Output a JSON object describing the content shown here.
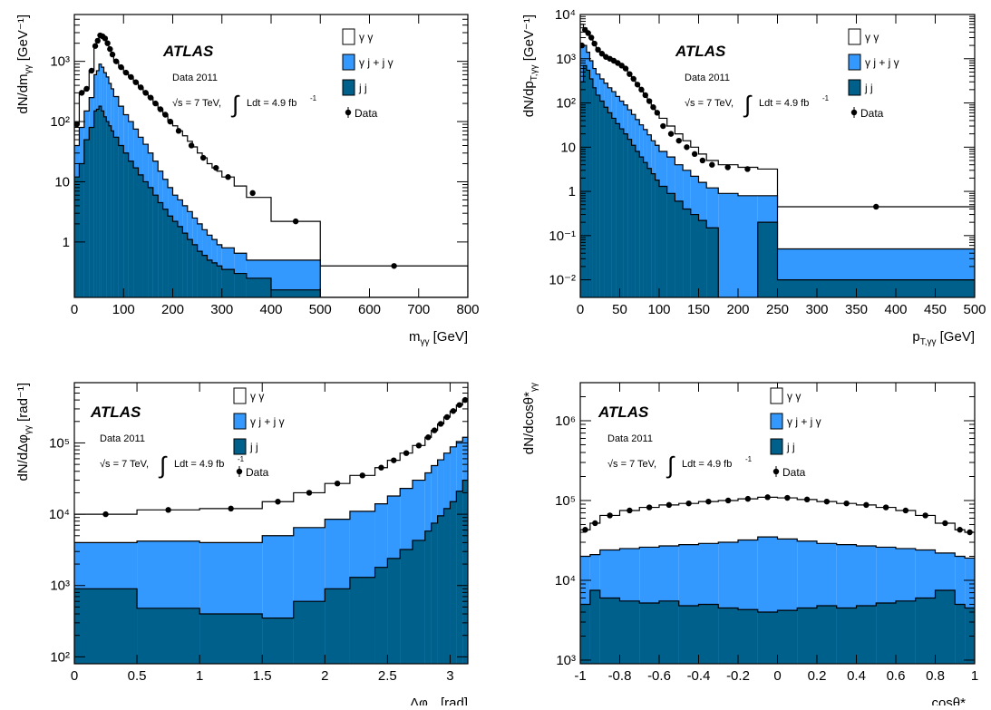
{
  "colors": {
    "gg": "#ffffff",
    "gj": "#3399ff",
    "jj": "#00608c",
    "line": "#000000"
  },
  "legend": {
    "gg": "γ γ",
    "gj": "γ j + j γ",
    "jj": "j j",
    "data": "Data"
  },
  "labels": {
    "atlas": "ATLAS",
    "data_year": "Data 2011",
    "energy": "√s = 7 TeV,",
    "integral": "∫",
    "lumi_pre": "Ldt = 4.9 fb",
    "lumi_exp": "-1"
  },
  "chart_data": [
    {
      "type": "area",
      "stacked": true,
      "xlabel": "m_γγ [GeV]",
      "ylabel": "dN/dm_γγ [GeV⁻¹]",
      "xlim": [
        0,
        800
      ],
      "ylim": [
        0.12,
        6000
      ],
      "log_y": true,
      "x_ticks": [
        0,
        100,
        200,
        300,
        400,
        500,
        600,
        700,
        800
      ],
      "x_tick_labels": [
        "0",
        "100",
        "200",
        "300",
        "400",
        "500",
        "600",
        "700",
        "800"
      ],
      "y_ticks": [
        1,
        10,
        100,
        1000
      ],
      "y_tick_labels": [
        "1",
        "10",
        "10²",
        "10³"
      ],
      "bin_edges": [
        0,
        10,
        20,
        30,
        40,
        45,
        50,
        55,
        60,
        65,
        70,
        75,
        80,
        90,
        100,
        110,
        120,
        130,
        140,
        150,
        160,
        170,
        180,
        190,
        200,
        210,
        220,
        230,
        240,
        250,
        260,
        270,
        280,
        290,
        300,
        325,
        350,
        400,
        500,
        800
      ],
      "series": [
        {
          "name": "γ γ",
          "values": [
            90,
            300,
            350,
            700,
            1800,
            2200,
            2700,
            2600,
            2400,
            2000,
            1600,
            1300,
            1000,
            800,
            650,
            550,
            450,
            370,
            300,
            250,
            200,
            160,
            130,
            100,
            85,
            70,
            58,
            47,
            38,
            30,
            25,
            20,
            17,
            15,
            12,
            8.5,
            5.5,
            2.2,
            0.4
          ]
        },
        {
          "name": "γ j + j γ",
          "values": [
            40,
            80,
            150,
            250,
            600,
            700,
            900,
            800,
            650,
            550,
            430,
            350,
            260,
            180,
            130,
            100,
            75,
            55,
            42,
            30,
            22,
            15,
            11,
            8,
            6,
            5,
            4,
            3.2,
            2.5,
            2,
            1.6,
            1.3,
            1.1,
            0.9,
            0.8,
            0.65,
            0.5,
            0.5,
            0.1
          ]
        },
        {
          "name": "j j",
          "values": [
            12,
            20,
            50,
            80,
            150,
            160,
            180,
            150,
            120,
            100,
            85,
            70,
            55,
            40,
            30,
            22,
            17,
            13,
            10,
            8,
            6,
            4.5,
            3.5,
            2.7,
            2.2,
            1.8,
            1.4,
            1.1,
            0.9,
            0.7,
            0.6,
            0.5,
            0.45,
            0.4,
            0.35,
            0.3,
            0.25,
            0.16,
            0.1
          ]
        }
      ],
      "data_points": {
        "x": [
          5,
          15,
          25,
          35,
          42.5,
          47.5,
          52.5,
          57.5,
          62.5,
          67.5,
          72.5,
          77.5,
          85,
          95,
          105,
          115,
          125,
          135,
          145,
          155,
          165,
          175,
          185,
          195,
          212,
          238,
          262,
          288,
          312.5,
          362.5,
          450,
          650
        ],
        "y": [
          90,
          300,
          350,
          700,
          1800,
          2200,
          2700,
          2600,
          2400,
          2000,
          1600,
          1300,
          1000,
          800,
          650,
          550,
          450,
          370,
          300,
          250,
          200,
          160,
          130,
          100,
          70,
          40,
          25,
          17,
          12,
          6.5,
          2.2,
          0.4
        ]
      }
    },
    {
      "type": "area",
      "stacked": true,
      "xlabel": "p_T,γγ [GeV]",
      "ylabel": "dN/dp_T,γγ [GeV⁻¹]",
      "xlim": [
        0,
        500
      ],
      "ylim": [
        0.004,
        10000
      ],
      "log_y": true,
      "x_ticks": [
        0,
        50,
        100,
        150,
        200,
        250,
        300,
        350,
        400,
        450,
        500
      ],
      "x_tick_labels": [
        "0",
        "50",
        "100",
        "150",
        "200",
        "250",
        "300",
        "350",
        "400",
        "450",
        "500"
      ],
      "y_ticks": [
        0.01,
        0.1,
        1,
        10,
        100,
        1000,
        10000
      ],
      "y_tick_labels": [
        "10⁻²",
        "10⁻¹",
        "1",
        "10",
        "10²",
        "10³",
        "10⁴"
      ],
      "bin_edges": [
        0,
        4,
        8,
        12,
        16,
        20,
        25,
        30,
        35,
        40,
        45,
        50,
        55,
        60,
        65,
        70,
        75,
        80,
        85,
        90,
        95,
        100,
        110,
        120,
        130,
        140,
        150,
        160,
        175,
        200,
        225,
        250,
        500
      ],
      "series": [
        {
          "name": "γ γ",
          "values": [
            6000,
            5000,
            4000,
            3000,
            2200,
            1600,
            1300,
            1100,
            1000,
            900,
            800,
            700,
            600,
            450,
            350,
            260,
            200,
            150,
            110,
            80,
            60,
            45,
            30,
            20,
            14,
            10,
            7,
            5,
            4,
            3.5,
            3.2,
            0.45
          ]
        },
        {
          "name": "γ j + j γ",
          "values": [
            1800,
            2000,
            1400,
            900,
            600,
            450,
            350,
            280,
            220,
            180,
            140,
            110,
            90,
            70,
            55,
            42,
            32,
            25,
            19,
            14,
            11,
            8,
            6,
            4,
            3,
            2.2,
            1.6,
            1.2,
            0.9,
            0.8,
            0.8,
            0.05
          ]
        },
        {
          "name": "j j",
          "values": [
            300,
            700,
            550,
            350,
            220,
            150,
            110,
            80,
            60,
            45,
            34,
            26,
            20,
            15,
            11,
            8,
            6,
            4.5,
            3.3,
            2.5,
            1.8,
            1.3,
            0.9,
            0.6,
            0.4,
            0.3,
            0.22,
            0.15,
            0.004,
            0.004,
            0.2,
            0.01
          ]
        }
      ],
      "data_points": {
        "x": [
          2,
          6,
          10,
          14,
          18,
          22.5,
          27.5,
          32.5,
          37.5,
          42.5,
          47.5,
          52.5,
          57.5,
          62.5,
          67.5,
          72.5,
          77.5,
          82.5,
          87.5,
          92.5,
          97.5,
          105,
          115,
          125,
          135,
          145,
          155,
          167,
          187,
          212,
          375
        ],
        "y": [
          2000,
          4500,
          3800,
          3000,
          2200,
          1600,
          1300,
          1100,
          1000,
          900,
          800,
          700,
          600,
          450,
          350,
          260,
          200,
          150,
          110,
          80,
          60,
          30,
          20,
          14,
          10,
          7,
          5,
          4,
          3.5,
          3.2,
          0.45
        ]
      }
    },
    {
      "type": "area",
      "stacked": true,
      "xlabel": "Δφ_γγ [rad]",
      "ylabel": "dN/dΔφ_γγ [rad⁻¹]",
      "xlim": [
        0,
        3.1416
      ],
      "ylim": [
        80,
        700000
      ],
      "log_y": true,
      "x_ticks": [
        0,
        0.5,
        1,
        1.5,
        2,
        2.5,
        3
      ],
      "x_tick_labels": [
        "0",
        "0.5",
        "1",
        "1.5",
        "2",
        "2.5",
        "3"
      ],
      "y_ticks": [
        100,
        1000,
        10000,
        100000
      ],
      "y_tick_labels": [
        "10²",
        "10³",
        "10⁴",
        "10⁵"
      ],
      "bin_edges": [
        0,
        0.5,
        1.0,
        1.5,
        1.75,
        2.0,
        2.2,
        2.4,
        2.5,
        2.6,
        2.7,
        2.8,
        2.85,
        2.9,
        2.95,
        3.0,
        3.05,
        3.1,
        3.1416
      ],
      "series": [
        {
          "name": "γ γ",
          "values": [
            10000,
            11500,
            12000,
            15000,
            20000,
            27000,
            35000,
            45000,
            57000,
            72000,
            92000,
            120000,
            150000,
            185000,
            230000,
            280000,
            340000,
            400000
          ]
        },
        {
          "name": "γ j + j γ",
          "values": [
            4000,
            4200,
            4000,
            5000,
            6500,
            8500,
            11000,
            14000,
            18000,
            23000,
            30000,
            38000,
            48000,
            58000,
            72000,
            88000,
            105000,
            120000
          ]
        },
        {
          "name": "j j",
          "values": [
            900,
            480,
            400,
            350,
            600,
            900,
            1300,
            1800,
            2400,
            3200,
            4300,
            5800,
            7500,
            9500,
            12000,
            15000,
            21000,
            30000
          ]
        }
      ],
      "data_points": {
        "x": [
          0.25,
          0.75,
          1.25,
          1.625,
          1.875,
          2.1,
          2.3,
          2.45,
          2.55,
          2.65,
          2.75,
          2.825,
          2.875,
          2.925,
          2.975,
          3.025,
          3.075,
          3.12
        ],
        "y": [
          10000,
          11500,
          12000,
          15000,
          20000,
          27000,
          35000,
          45000,
          57000,
          72000,
          92000,
          120000,
          150000,
          185000,
          230000,
          280000,
          340000,
          400000
        ]
      }
    },
    {
      "type": "area",
      "stacked": true,
      "xlabel": "cosθ*_γγ",
      "ylabel": "dN/dcosθ*_γγ",
      "xlim": [
        -1,
        1
      ],
      "ylim": [
        900,
        3000000
      ],
      "log_y": true,
      "x_ticks": [
        -1,
        -0.8,
        -0.6,
        -0.4,
        -0.2,
        0,
        0.2,
        0.4,
        0.6,
        0.8,
        1
      ],
      "x_tick_labels": [
        "-1",
        "-0.8",
        "-0.6",
        "-0.4",
        "-0.2",
        "0",
        "0.2",
        "0.4",
        "0.6",
        "0.8",
        "1"
      ],
      "y_ticks": [
        1000,
        10000,
        100000,
        1000000
      ],
      "y_tick_labels": [
        "10³",
        "10⁴",
        "10⁵",
        "10⁶"
      ],
      "bin_edges": [
        -1,
        -0.95,
        -0.9,
        -0.8,
        -0.7,
        -0.6,
        -0.5,
        -0.4,
        -0.3,
        -0.2,
        -0.1,
        0,
        0.1,
        0.2,
        0.3,
        0.4,
        0.5,
        0.6,
        0.7,
        0.8,
        0.9,
        0.95,
        1
      ],
      "series": [
        {
          "name": "γ γ",
          "values": [
            43000,
            52000,
            65000,
            75000,
            82000,
            88000,
            92000,
            97000,
            100000,
            105000,
            110000,
            108000,
            103000,
            97000,
            92000,
            88000,
            82000,
            75000,
            65000,
            52000,
            43000,
            40000
          ]
        },
        {
          "name": "γ j + j γ",
          "values": [
            20000,
            21000,
            24000,
            25000,
            26000,
            27000,
            28000,
            29000,
            30000,
            32000,
            35000,
            33000,
            31000,
            29000,
            28000,
            27000,
            26000,
            25000,
            24000,
            22000,
            20000,
            19000
          ]
        },
        {
          "name": "j j",
          "values": [
            5000,
            7500,
            6000,
            5500,
            5200,
            5500,
            4800,
            5000,
            4500,
            4300,
            4000,
            4200,
            4500,
            4800,
            4500,
            4800,
            5200,
            5500,
            6000,
            7500,
            5000,
            4500
          ]
        }
      ],
      "data_points": {
        "x": [
          -0.975,
          -0.925,
          -0.85,
          -0.75,
          -0.65,
          -0.55,
          -0.45,
          -0.35,
          -0.25,
          -0.15,
          -0.05,
          0.05,
          0.15,
          0.25,
          0.35,
          0.45,
          0.55,
          0.65,
          0.75,
          0.85,
          0.925,
          0.975
        ],
        "y": [
          43000,
          52000,
          65000,
          75000,
          82000,
          88000,
          92000,
          97000,
          100000,
          105000,
          110000,
          108000,
          103000,
          97000,
          92000,
          88000,
          82000,
          75000,
          65000,
          52000,
          43000,
          40000
        ]
      }
    }
  ]
}
